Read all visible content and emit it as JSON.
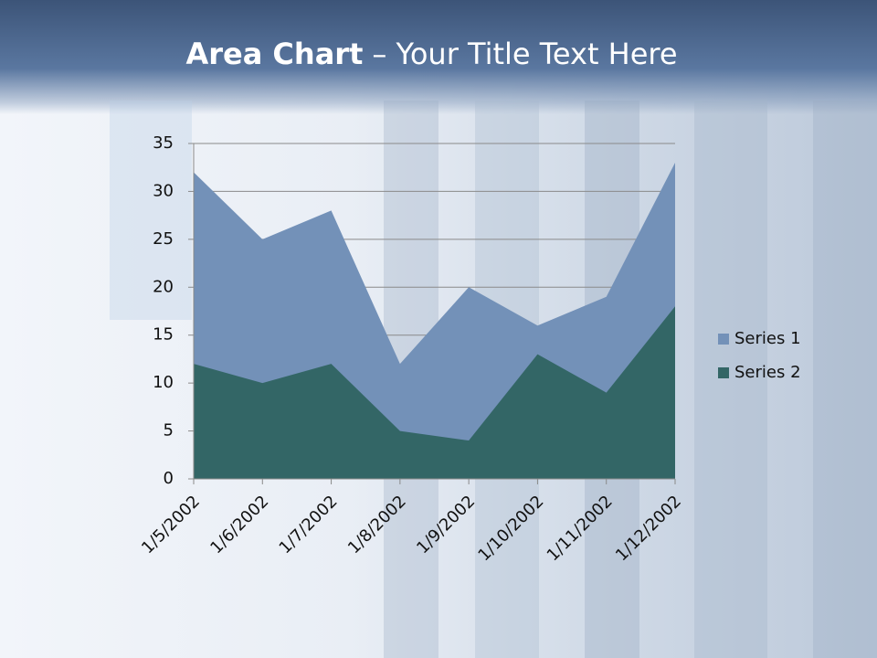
{
  "chart_data": {
    "type": "area",
    "title": {
      "bold": "Area Chart",
      "rest": "– Your Title Text Here"
    },
    "categories": [
      "1/5/2002",
      "1/6/2002",
      "1/7/2002",
      "1/8/2002",
      "1/9/2002",
      "1/10/2002",
      "1/11/2002",
      "1/12/2002"
    ],
    "series": [
      {
        "name": "Series 1",
        "color": "#7391b8",
        "values": [
          32,
          25,
          28,
          12,
          20,
          16,
          19,
          33
        ]
      },
      {
        "name": "Series 2",
        "color": "#336666",
        "values": [
          12,
          10,
          12,
          5,
          4,
          13,
          9,
          18
        ]
      }
    ],
    "ylim": [
      0,
      35
    ],
    "yticks": [
      0,
      5,
      10,
      15,
      20,
      25,
      30,
      35
    ],
    "grid": true,
    "legend": "right"
  }
}
